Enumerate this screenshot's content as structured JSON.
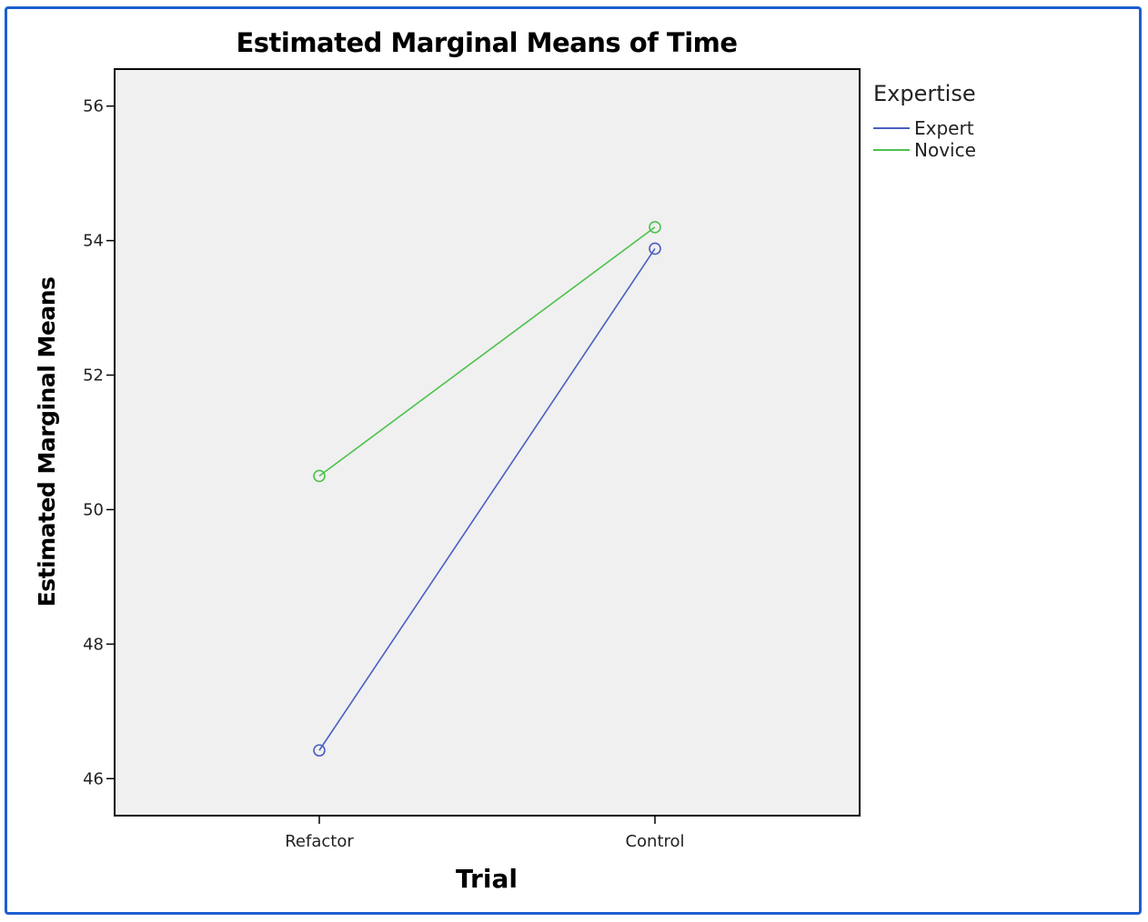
{
  "chart_data": {
    "type": "line",
    "title": "Estimated Marginal Means of Time",
    "xlabel": "Trial",
    "ylabel": "Estimated Marginal Means",
    "categories": [
      "Refactor",
      "Control"
    ],
    "ylim": [
      45.45,
      56.55
    ],
    "yticks": [
      46,
      48,
      50,
      52,
      54,
      56
    ],
    "grid": false,
    "legend": {
      "title": "Expertise",
      "position": "right"
    },
    "series": [
      {
        "name": "Expert",
        "values": [
          46.42,
          53.88
        ],
        "color": "#4a5fc1"
      },
      {
        "name": "Novice",
        "values": [
          50.5,
          54.2
        ],
        "color": "#4cc24c"
      }
    ]
  },
  "colors": {
    "plot_background": "#f0f0f0",
    "frame_border": "#1d5fd1"
  }
}
